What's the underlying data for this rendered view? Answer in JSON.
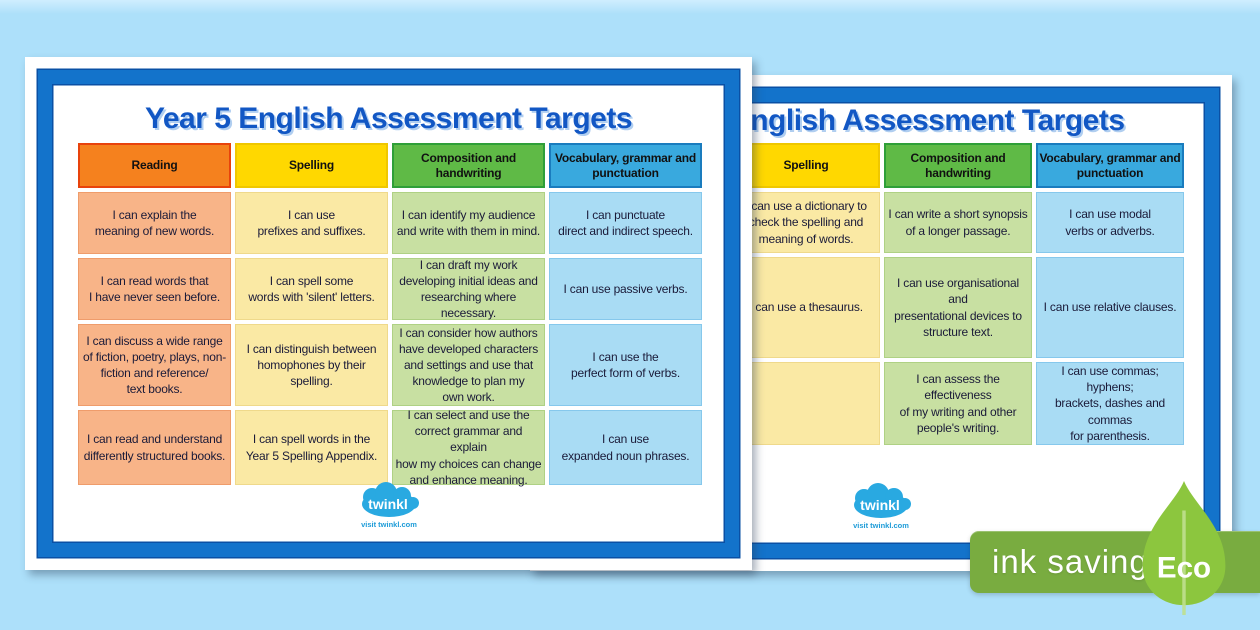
{
  "eco_badge": {
    "label": "ink saving",
    "leaf_text": "Eco",
    "banner_color": "#79AC40",
    "leaf_color": "#8CC63E"
  },
  "colors": {
    "background": "#ADE0FA",
    "poster_border": "#1373CB",
    "poster_border_edge": "#0A50A5",
    "title_text": "#1257C4",
    "twinkl_blue": "#29A9E1",
    "cell_text": "#1A1A38"
  },
  "posters": {
    "front": {
      "title": "Year 5 English Assessment Targets",
      "logo": {
        "brand": "twinkl",
        "tagline": "visit twinkl.com"
      },
      "columns": [
        {
          "header": "Reading",
          "header_bg": "#F5811E",
          "header_border": "#E8430C",
          "cell_bg": "#F8B488",
          "cell_border": "#EF9C6B",
          "cells": [
            "I can explain the\nmeaning of new words.",
            "I can read words that\nI have never seen before.",
            "I can discuss a wide range\nof fiction, poetry, plays, non-\nfiction and reference/\ntext books.",
            "I can read and understand\ndifferently structured books."
          ]
        },
        {
          "header": "Spelling",
          "header_bg": "#FFD800",
          "header_border": "#EFC700",
          "cell_bg": "#FAE9A4",
          "cell_border": "#EFD98B",
          "cells": [
            "I can use\nprefixes and suffixes.",
            "I can spell some\nwords with 'silent' letters.",
            "I can distinguish between\nhomophones by their spelling.",
            "I can spell words in the\nYear 5 Spelling Appendix."
          ]
        },
        {
          "header": "Composition and\nhandwriting",
          "header_bg": "#5FBA46",
          "header_border": "#2F9F38",
          "cell_bg": "#C8E0A2",
          "cell_border": "#AFD184",
          "cells": [
            "I can identify my audience\nand write with them in mind.",
            "I can draft my work\ndeveloping initial ideas and\nresearching where necessary.",
            "I can consider how authors\nhave developed characters\nand settings and use that\nknowledge to plan my\nown work.",
            "I can select and use the\ncorrect grammar and explain\nhow my choices can change\nand enhance meaning."
          ]
        },
        {
          "header": "Vocabulary, grammar and\npunctuation",
          "header_bg": "#39A9DE",
          "header_border": "#1A7CBE",
          "cell_bg": "#A9DCF4",
          "cell_border": "#86C8EC",
          "cells": [
            "I can punctuate\ndirect and indirect speech.",
            "I can use passive verbs.",
            "I can use the\nperfect form of verbs.",
            "I can use\nexpanded noun phrases."
          ]
        }
      ]
    },
    "back": {
      "title": "Year 5 English Assessment Targets",
      "logo": {
        "brand": "twinkl",
        "tagline": "visit twinkl.com"
      },
      "columns": [
        {
          "header": "",
          "header_bg": "#F5811E",
          "header_border": "#E8430C",
          "cell_bg": "#F8B488",
          "cell_border": "#EF9C6B",
          "cells": [
            "",
            "",
            ""
          ]
        },
        {
          "header": "Spelling",
          "header_bg": "#FFD800",
          "header_border": "#EFC700",
          "cell_bg": "#FAE9A4",
          "cell_border": "#EFD98B",
          "cells": [
            "I can use a dictionary to\ncheck the spelling and\nmeaning of words.",
            "I can use a thesaurus.",
            ""
          ]
        },
        {
          "header": "Composition and\nhandwriting",
          "header_bg": "#5FBA46",
          "header_border": "#2F9F38",
          "cell_bg": "#C8E0A2",
          "cell_border": "#AFD184",
          "cells": [
            "I can write a short synopsis\nof a longer passage.",
            "I can use organisational and\npresentational devices to\nstructure text.",
            "I can assess the effectiveness\nof my writing and other\npeople's writing."
          ]
        },
        {
          "header": "Vocabulary, grammar and\npunctuation",
          "header_bg": "#39A9DE",
          "header_border": "#1A7CBE",
          "cell_bg": "#A9DCF4",
          "cell_border": "#86C8EC",
          "cells": [
            "I can use modal\nverbs or adverbs.",
            "I can use relative clauses.",
            "I can use commas; hyphens;\nbrackets, dashes and commas\nfor parenthesis."
          ]
        }
      ]
    }
  }
}
